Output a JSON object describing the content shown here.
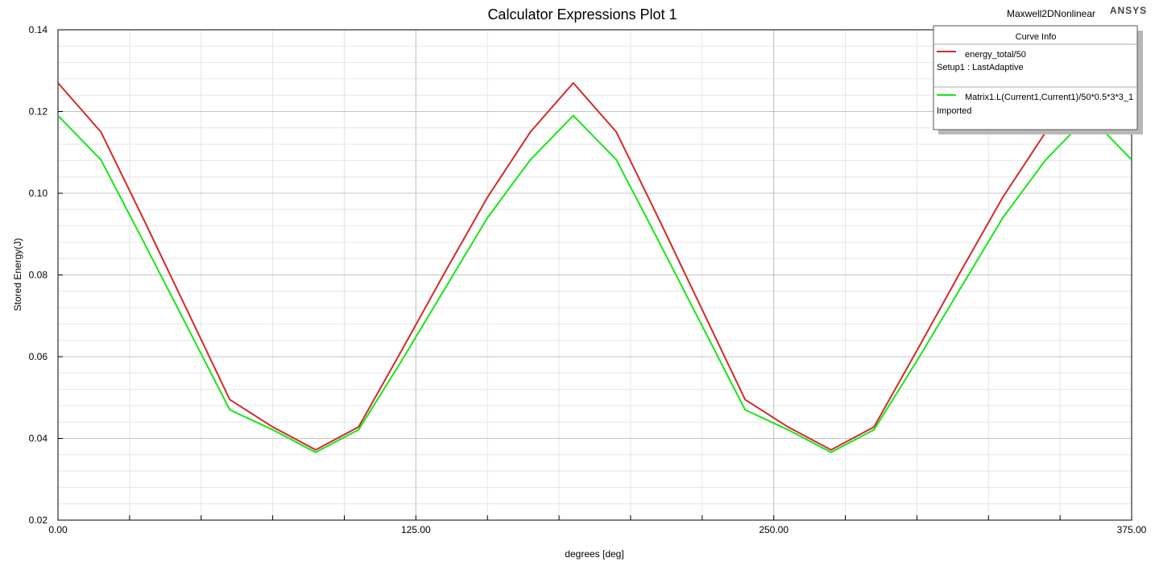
{
  "header": {
    "project": "Maxwell2DNonlinear",
    "vendor": "ANSYS"
  },
  "legend": {
    "title": "Curve Info"
  },
  "chart_data": {
    "type": "line",
    "title": "Calculator Expressions Plot 1",
    "xlabel": "degrees [deg]",
    "ylabel": "Stored Energy(J)",
    "xlim": [
      0,
      375
    ],
    "ylim": [
      0.02,
      0.14
    ],
    "xticks": [
      0,
      125,
      250,
      375
    ],
    "xtick_labels": [
      "0.00",
      "125.00",
      "250.00",
      "375.00"
    ],
    "yticks": [
      0.02,
      0.04,
      0.06,
      0.08,
      0.1,
      0.12,
      0.14
    ],
    "ytick_labels": [
      "0.02",
      "0.04",
      "0.06",
      "0.08",
      "0.10",
      "0.12",
      "0.14"
    ],
    "grid": true,
    "legend_position": "top-right",
    "series": [
      {
        "name": "energy_total/50",
        "source": "Setup1 : LastAdaptive",
        "color": "#d42a2a",
        "x": [
          0,
          15,
          30,
          45,
          60,
          75,
          90,
          105,
          120,
          135,
          150,
          165,
          180,
          195,
          210,
          225,
          240,
          255,
          270,
          285,
          300,
          315,
          330,
          345,
          360,
          375
        ],
        "y": [
          0.127,
          0.115,
          0.0935,
          0.0715,
          0.0495,
          0.0428,
          0.0372,
          0.0428,
          0.0615,
          0.0805,
          0.099,
          0.115,
          0.127,
          0.115,
          0.0935,
          0.0715,
          0.0495,
          0.0428,
          0.0372,
          0.0428,
          0.0615,
          0.0805,
          0.099,
          0.115,
          0.127,
          0.115
        ]
      },
      {
        "name": "Matrix1.L(Current1,Current1)/50*0.5*3*3_1",
        "source": "Imported",
        "color": "#19e619",
        "x": [
          0,
          15,
          30,
          45,
          60,
          75,
          90,
          105,
          120,
          135,
          150,
          165,
          180,
          195,
          210,
          225,
          240,
          255,
          270,
          285,
          300,
          315,
          330,
          345,
          360,
          375
        ],
        "y": [
          0.119,
          0.1082,
          0.088,
          0.0675,
          0.047,
          0.0421,
          0.0366,
          0.0421,
          0.059,
          0.0765,
          0.094,
          0.1082,
          0.119,
          0.1082,
          0.088,
          0.0675,
          0.047,
          0.0421,
          0.0366,
          0.0421,
          0.059,
          0.0765,
          0.094,
          0.1082,
          0.119,
          0.1082
        ]
      }
    ]
  }
}
